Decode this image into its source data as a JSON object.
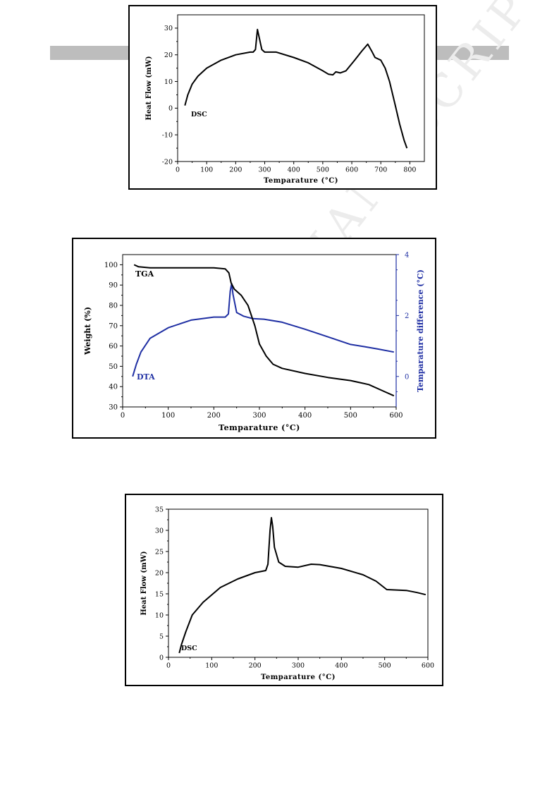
{
  "chart_data": [
    {
      "type": "line",
      "name": "chart-dsc-1",
      "xlabel": "Temparature (°C)",
      "ylabel": "Heat Flow (mW)",
      "xlim": [
        0,
        850
      ],
      "ylim": [
        -20,
        35
      ],
      "xticks": [
        0,
        100,
        200,
        300,
        400,
        500,
        600,
        700,
        800
      ],
      "yticks": [
        -20,
        -10,
        0,
        10,
        20,
        30
      ],
      "annotations": [
        "DSC"
      ],
      "series": [
        {
          "color": "#000000",
          "points": [
            [
              25,
              1
            ],
            [
              35,
              5
            ],
            [
              50,
              9
            ],
            [
              70,
              12
            ],
            [
              100,
              15
            ],
            [
              150,
              18
            ],
            [
              200,
              20
            ],
            [
              250,
              21
            ],
            [
              260,
              21
            ],
            [
              268,
              22
            ],
            [
              275,
              29.5
            ],
            [
              282,
              26
            ],
            [
              290,
              22
            ],
            [
              300,
              21
            ],
            [
              340,
              21
            ],
            [
              400,
              19
            ],
            [
              450,
              17
            ],
            [
              500,
              14
            ],
            [
              520,
              12.7
            ],
            [
              535,
              12.5
            ],
            [
              545,
              13.6
            ],
            [
              560,
              13.2
            ],
            [
              580,
              14
            ],
            [
              610,
              18
            ],
            [
              635,
              21.5
            ],
            [
              655,
              24
            ],
            [
              668,
              21.5
            ],
            [
              680,
              19
            ],
            [
              700,
              18
            ],
            [
              715,
              15
            ],
            [
              730,
              10
            ],
            [
              750,
              1
            ],
            [
              765,
              -6
            ],
            [
              780,
              -12
            ],
            [
              790,
              -15
            ]
          ]
        }
      ]
    },
    {
      "type": "line",
      "name": "chart-tga-dta",
      "xlabel": "Temparature (°C)",
      "ylabel": "Weight (%)",
      "y2label": "Temparature difference (°C)",
      "xlim": [
        0,
        600
      ],
      "ylim": [
        30,
        105
      ],
      "y2lim": [
        -1,
        4
      ],
      "xticks": [
        0,
        100,
        200,
        300,
        400,
        500,
        600
      ],
      "yticks": [
        30,
        40,
        50,
        60,
        70,
        80,
        90,
        100
      ],
      "y2ticks": [
        0,
        2,
        4
      ],
      "series": [
        {
          "name": "TGA",
          "axis": "left",
          "color": "#000000",
          "points": [
            [
              25,
              100
            ],
            [
              35,
              99
            ],
            [
              60,
              98.5
            ],
            [
              200,
              98.5
            ],
            [
              225,
              98
            ],
            [
              233,
              96
            ],
            [
              238,
              91
            ],
            [
              245,
              88
            ],
            [
              260,
              85
            ],
            [
              275,
              80
            ],
            [
              290,
              70
            ],
            [
              300,
              61
            ],
            [
              315,
              55
            ],
            [
              330,
              51
            ],
            [
              350,
              49
            ],
            [
              400,
              46.5
            ],
            [
              450,
              44.5
            ],
            [
              500,
              43
            ],
            [
              540,
              41
            ],
            [
              570,
              38
            ],
            [
              595,
              35.5
            ]
          ]
        },
        {
          "name": "DTA",
          "axis": "right",
          "color": "#1f2fa3",
          "points": [
            [
              22,
              0
            ],
            [
              30,
              0.4
            ],
            [
              40,
              0.8
            ],
            [
              60,
              1.25
            ],
            [
              100,
              1.6
            ],
            [
              150,
              1.85
            ],
            [
              200,
              1.95
            ],
            [
              225,
              1.95
            ],
            [
              232,
              2.05
            ],
            [
              236,
              2.8
            ],
            [
              239,
              3.05
            ],
            [
              242,
              2.7
            ],
            [
              250,
              2.1
            ],
            [
              265,
              1.98
            ],
            [
              285,
              1.9
            ],
            [
              310,
              1.88
            ],
            [
              350,
              1.78
            ],
            [
              400,
              1.55
            ],
            [
              450,
              1.3
            ],
            [
              500,
              1.05
            ],
            [
              530,
              0.98
            ],
            [
              560,
              0.9
            ],
            [
              595,
              0.8
            ]
          ]
        }
      ]
    },
    {
      "type": "line",
      "name": "chart-dsc-2",
      "xlabel": "Temparature (°C)",
      "ylabel": "Heat Flow (mW)",
      "xlim": [
        0,
        600
      ],
      "ylim": [
        0,
        35
      ],
      "xticks": [
        0,
        100,
        200,
        300,
        400,
        500,
        600
      ],
      "yticks": [
        0,
        5,
        10,
        15,
        20,
        25,
        30,
        35
      ],
      "annotations": [
        "DSC"
      ],
      "series": [
        {
          "color": "#000000",
          "points": [
            [
              25,
              1
            ],
            [
              30,
              3
            ],
            [
              40,
              6
            ],
            [
              55,
              10
            ],
            [
              80,
              13
            ],
            [
              120,
              16.5
            ],
            [
              160,
              18.5
            ],
            [
              200,
              20
            ],
            [
              225,
              20.5
            ],
            [
              230,
              22
            ],
            [
              235,
              30
            ],
            [
              238,
              33
            ],
            [
              241,
              31
            ],
            [
              245,
              26
            ],
            [
              255,
              22.5
            ],
            [
              270,
              21.5
            ],
            [
              300,
              21.3
            ],
            [
              330,
              22
            ],
            [
              350,
              21.9
            ],
            [
              400,
              21
            ],
            [
              450,
              19.5
            ],
            [
              480,
              18
            ],
            [
              505,
              16
            ],
            [
              550,
              15.8
            ],
            [
              575,
              15.3
            ],
            [
              595,
              14.8
            ]
          ]
        }
      ]
    }
  ],
  "labels": {
    "dsc1": "DSC",
    "tga": "TGA",
    "dta": "DTA",
    "dsc2": "DSC"
  }
}
